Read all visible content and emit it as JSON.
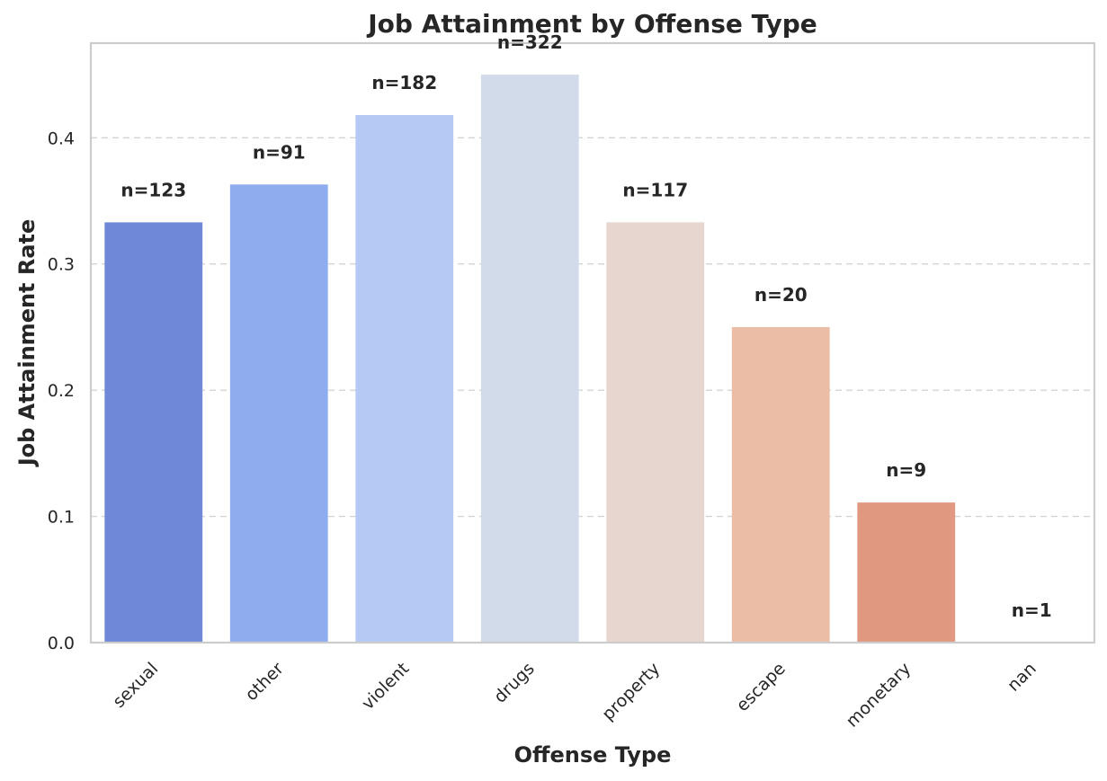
{
  "chart_data": {
    "type": "bar",
    "title": "Job Attainment by Offense Type",
    "xlabel": "Offense Type",
    "ylabel": "Job Attainment Rate",
    "categories": [
      "sexual",
      "other",
      "violent",
      "drugs",
      "property",
      "escape",
      "monetary",
      "nan"
    ],
    "values": [
      0.333,
      0.363,
      0.418,
      0.45,
      0.333,
      0.25,
      0.111,
      0.0
    ],
    "annotations": [
      "n=123",
      "n=91",
      "n=182",
      "n=322",
      "n=117",
      "n=20",
      "n=9",
      "n=1"
    ],
    "ylim": [
      0,
      0.475
    ],
    "yticks": [
      0.0,
      0.1,
      0.2,
      0.3,
      0.4
    ],
    "ytick_labels": [
      "0.0",
      "0.1",
      "0.2",
      "0.3",
      "0.4"
    ],
    "grid": "y-dashed",
    "legend": "none",
    "colors": [
      "#6f88d8",
      "#8fadee",
      "#b4c9f4",
      "#d1dbea",
      "#e6d6cf",
      "#ebbca6",
      "#e09880",
      "#d46f57"
    ]
  }
}
